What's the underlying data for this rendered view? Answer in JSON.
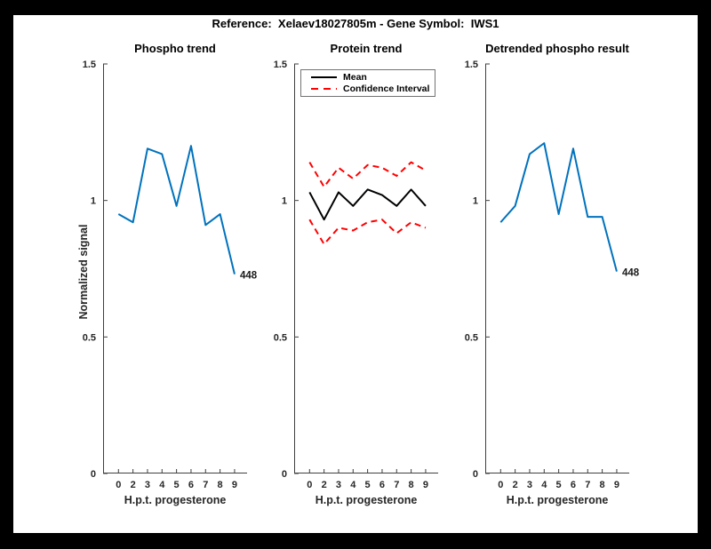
{
  "window": {
    "title": "Reference:  Xelaev18027805m - Gene Symbol:  IWS1"
  },
  "colors": {
    "line_blue": "#0072BD",
    "ci_red": "#FF0000",
    "mean_black": "#000000",
    "axis": "#3F3F3F",
    "figure_background": "#FFFFFF",
    "frame_background": "#000000"
  },
  "chart_data": [
    {
      "type": "line",
      "title": "Phospho trend",
      "xlabel": "H.p.t. progesterone",
      "ylabel": "Normalized signal",
      "x_tick_labels": [
        "0",
        "2",
        "3",
        "4",
        "5",
        "6",
        "7",
        "8",
        "9"
      ],
      "y_ticks": [
        0,
        0.5,
        1,
        1.5
      ],
      "ylim": [
        0,
        1.5
      ],
      "grid": false,
      "legend_position": "none",
      "series": [
        {
          "name": "phospho-signal",
          "color": "#0072BD",
          "dash": "solid",
          "values": [
            0.95,
            0.92,
            1.19,
            1.17,
            0.98,
            1.2,
            0.91,
            0.95,
            0.73
          ]
        }
      ],
      "end_label": "448"
    },
    {
      "type": "line",
      "title": "Protein trend",
      "xlabel": "H.p.t. progesterone",
      "ylabel": "",
      "x_tick_labels": [
        "0",
        "2",
        "3",
        "4",
        "5",
        "6",
        "7",
        "8",
        "9"
      ],
      "y_ticks": [
        0,
        0.5,
        1,
        1.5
      ],
      "ylim": [
        0,
        1.5
      ],
      "grid": false,
      "legend": {
        "position": "top-left",
        "items": [
          {
            "label": "Mean"
          },
          {
            "label": "Confidence Interval"
          }
        ]
      },
      "series": [
        {
          "name": "mean",
          "color": "#000000",
          "dash": "solid",
          "values": [
            1.03,
            0.93,
            1.03,
            0.98,
            1.04,
            1.02,
            0.98,
            1.04,
            0.98
          ]
        },
        {
          "name": "confidence-upper",
          "color": "#FF0000",
          "dash": "dashed",
          "values": [
            1.14,
            1.05,
            1.12,
            1.08,
            1.13,
            1.12,
            1.09,
            1.14,
            1.11
          ]
        },
        {
          "name": "confidence-lower",
          "color": "#FF0000",
          "dash": "dashed",
          "values": [
            0.93,
            0.84,
            0.9,
            0.89,
            0.92,
            0.93,
            0.88,
            0.92,
            0.9
          ]
        }
      ]
    },
    {
      "type": "line",
      "title": "Detrended phospho result",
      "xlabel": "H.p.t. progesterone",
      "ylabel": "",
      "x_tick_labels": [
        "0",
        "2",
        "3",
        "4",
        "5",
        "6",
        "7",
        "8",
        "9"
      ],
      "y_ticks": [
        0,
        0.5,
        1,
        1.5
      ],
      "ylim": [
        0,
        1.5
      ],
      "grid": false,
      "legend_position": "none",
      "series": [
        {
          "name": "detrended-phospho-signal",
          "color": "#0072BD",
          "dash": "solid",
          "values": [
            0.92,
            0.98,
            1.17,
            1.21,
            0.95,
            1.19,
            0.94,
            0.94,
            0.74
          ]
        }
      ],
      "end_label": "448"
    }
  ]
}
